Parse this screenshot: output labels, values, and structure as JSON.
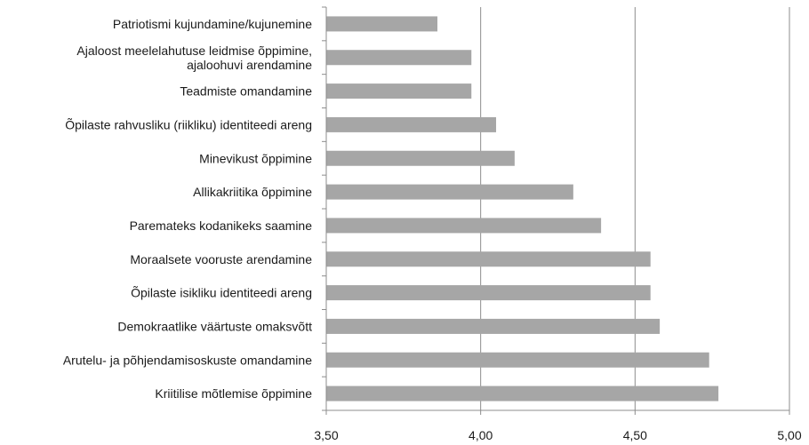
{
  "chart_data": {
    "type": "bar",
    "orientation": "horizontal",
    "categories": [
      "Patriotismi kujundamine/kujunemine",
      "Ajaloost meelelahutuse leidmise õppimine, ajaloohuvi arendamine",
      "Teadmiste omandamine",
      "Õpilaste rahvusliku (riikliku) identiteedi areng",
      "Minevikust õppimine",
      "Allikakriitika õppimine",
      "Paremateks kodanikeks saamine",
      "Moraalsete vooruste arendamine",
      "Õpilaste isikliku identiteedi areng",
      "Demokraatlike väärtuste omaksvõtt",
      "Arutelu- ja põhjendamisoskuste omandamine",
      "Kriitilise mõtlemise õppimine"
    ],
    "category_lines": [
      [
        "Patriotismi kujundamine/kujunemine"
      ],
      [
        "Ajaloost meelelahutuse leidmise õppimine,",
        "ajaloohuvi arendamine"
      ],
      [
        "Teadmiste omandamine"
      ],
      [
        "Õpilaste rahvusliku (riikliku) identiteedi areng"
      ],
      [
        "Minevikust õppimine"
      ],
      [
        "Allikakriitika õppimine"
      ],
      [
        "Paremateks kodanikeks saamine"
      ],
      [
        "Moraalsete vooruste arendamine"
      ],
      [
        "Õpilaste isikliku identiteedi areng"
      ],
      [
        "Demokraatlike väärtuste omaksvõtt"
      ],
      [
        "Arutelu- ja põhjendamisoskuste omandamine"
      ],
      [
        "Kriitilise mõtlemise õppimine"
      ]
    ],
    "values": [
      3.86,
      3.97,
      3.97,
      4.05,
      4.11,
      4.3,
      4.39,
      4.55,
      4.55,
      4.58,
      4.74,
      4.77
    ],
    "xlim": [
      3.5,
      5.0
    ],
    "xticks": [
      3.5,
      4.0,
      4.5,
      5.0
    ],
    "xtick_labels": [
      "3,50",
      "4,00",
      "4,50",
      "5,00"
    ],
    "grid": true,
    "legend": "none",
    "title": "",
    "xlabel": "",
    "ylabel": "",
    "colors": {
      "bar": "#a6a6a6",
      "grid": "#8c8c8c",
      "axis": "#8c8c8c"
    }
  }
}
